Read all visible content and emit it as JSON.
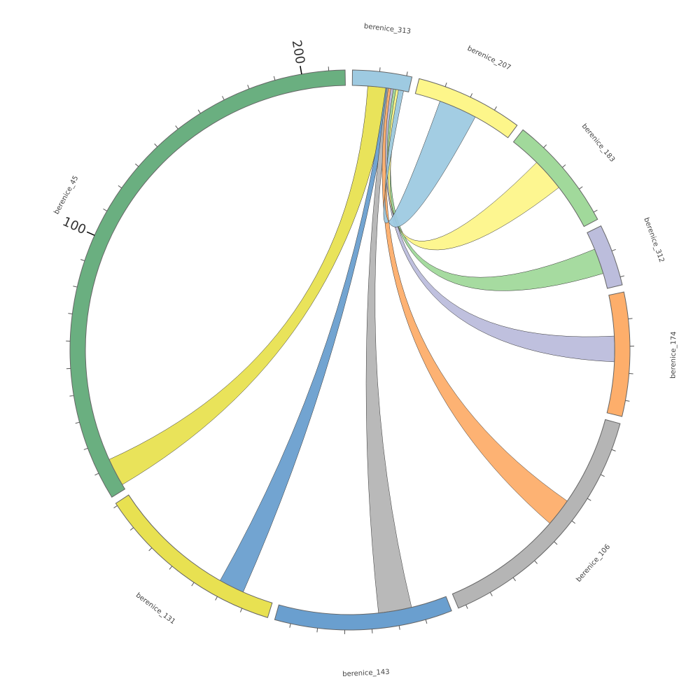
{
  "chart_data": {
    "type": "chord",
    "tick_interval": 10,
    "segments": [
      {
        "name": "berenice_313",
        "size": 22,
        "color": "#9ecae1"
      },
      {
        "name": "berenice_207",
        "size": 40,
        "color": "#fdf68a"
      },
      {
        "name": "berenice_183",
        "size": 43,
        "color": "#a1d99b"
      },
      {
        "name": "berenice_312",
        "size": 23,
        "color": "#bcbddc"
      },
      {
        "name": "berenice_174",
        "size": 46,
        "color": "#fdae6b"
      },
      {
        "name": "berenice_106",
        "size": 93,
        "color": "#b5b5b5"
      },
      {
        "name": "berenice_143",
        "size": 66,
        "color": "#6a9fcf"
      },
      {
        "name": "berenice_131",
        "size": 71,
        "color": "#e8e151"
      },
      {
        "name": "berenice_45",
        "size": 216,
        "color": "#6aaf80",
        "labeled_ticks": [
          100,
          200
        ]
      }
    ],
    "links": [
      {
        "source": "berenice_313",
        "target": "berenice_45",
        "source_range": [
          6,
          14
        ],
        "target_range": [
          2,
          13
        ],
        "color": "#e8e151"
      },
      {
        "source": "berenice_313",
        "target": "berenice_131",
        "source_range": [
          13,
          15
        ],
        "target_range": [
          12,
          22
        ],
        "color": "#6a9fcf"
      },
      {
        "source": "berenice_313",
        "target": "berenice_143",
        "source_range": [
          13.5,
          15.5
        ],
        "target_range": [
          14,
          27
        ],
        "color": "#b5b5b5"
      },
      {
        "source": "berenice_313",
        "target": "berenice_106",
        "source_range": [
          14,
          16
        ],
        "target_range": [
          35,
          46
        ],
        "color": "#fdae6b"
      },
      {
        "source": "berenice_313",
        "target": "berenice_174",
        "source_range": [
          15,
          17
        ],
        "target_range": [
          16,
          26
        ],
        "color": "#bcbddc"
      },
      {
        "source": "berenice_313",
        "target": "berenice_312",
        "source_range": [
          16,
          18
        ],
        "target_range": [
          7,
          17
        ],
        "color": "#a1d99b"
      },
      {
        "source": "berenice_313",
        "target": "berenice_183",
        "source_range": [
          17,
          19
        ],
        "target_range": [
          12,
          25
        ],
        "color": "#fdf68a"
      },
      {
        "source": "berenice_313",
        "target": "berenice_207",
        "source_range": [
          18,
          20
        ],
        "target_range": [
          10,
          25
        ],
        "color": "#9ecae1"
      }
    ]
  }
}
